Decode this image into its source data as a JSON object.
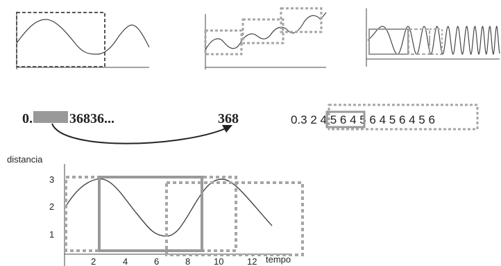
{
  "colors": {
    "ink": "#222222",
    "curve": "#444444",
    "dash_dark": "#555555",
    "dash_light": "#a6a6a6",
    "solid_gray": "#999999"
  },
  "decimal_example": {
    "prefix": "0.",
    "suffix": "36836...",
    "repeat_block": "368"
  },
  "decimal_example2": {
    "digits": "0.3 2 4 5 6 4 5 6 4 5 6 4 5 6"
  },
  "distance_chart": {
    "ylabel": "distancia",
    "xlabel": "tempo",
    "y_ticks": [
      "3",
      "2",
      "1"
    ],
    "x_ticks": [
      "2",
      "4",
      "6",
      "8",
      "10",
      "12"
    ]
  }
}
